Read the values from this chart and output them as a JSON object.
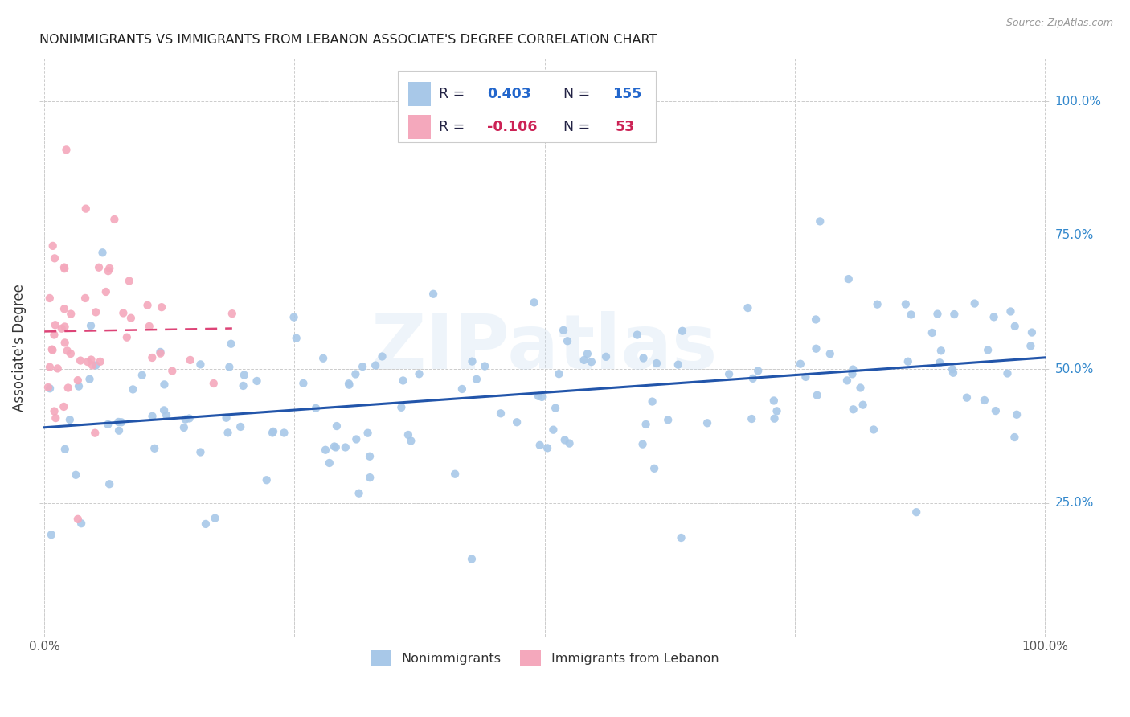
{
  "title": "NONIMMIGRANTS VS IMMIGRANTS FROM LEBANON ASSOCIATE'S DEGREE CORRELATION CHART",
  "source": "Source: ZipAtlas.com",
  "ylabel": "Associate's Degree",
  "legend_nonimm": "Nonimmigrants",
  "legend_imm": "Immigrants from Lebanon",
  "R_nonimm": 0.403,
  "N_nonimm": 155,
  "R_imm": -0.106,
  "N_imm": 53,
  "blue_dot_color": "#a8c8e8",
  "pink_dot_color": "#f4a8bc",
  "blue_line_color": "#2255aa",
  "pink_line_color": "#dd4477",
  "blue_text_color": "#2266cc",
  "pink_text_color": "#cc2255",
  "dark_text_color": "#222244",
  "background_color": "#ffffff",
  "grid_color": "#cccccc",
  "legend_box_color": "#f8f8f8",
  "ytick_color": "#3388cc",
  "seed_nonimm": 42,
  "seed_imm": 99
}
